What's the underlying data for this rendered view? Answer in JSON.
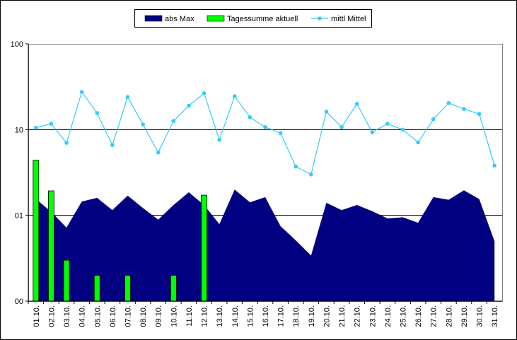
{
  "chart_data": {
    "type": "combo",
    "categories": [
      "01.10.",
      "02.10.",
      "03.10.",
      "04.10.",
      "05.10.",
      "06.10.",
      "07.10.",
      "08.10.",
      "09.10.",
      "10.10.",
      "11.10.",
      "12.10.",
      "13.10.",
      "14.10.",
      "15.10.",
      "16.10.",
      "17.10.",
      "18.10.",
      "19.10.",
      "20.10.",
      "21.10.",
      "22.10.",
      "23.10.",
      "24.10.",
      "25.10.",
      "26.10.",
      "27.10.",
      "28.10.",
      "29.10.",
      "30.10.",
      "31.10."
    ],
    "series": [
      {
        "name": "abs Max",
        "kind": "area",
        "color": "#000080",
        "values": [
          1.55,
          1.1,
          0.72,
          1.45,
          1.6,
          1.15,
          1.7,
          1.22,
          0.89,
          1.32,
          1.86,
          1.32,
          0.79,
          2.0,
          1.42,
          1.63,
          0.75,
          0.51,
          0.34,
          1.4,
          1.15,
          1.32,
          1.12,
          0.92,
          0.95,
          0.82,
          1.63,
          1.52,
          1.96,
          1.55,
          0.5
        ]
      },
      {
        "name": "Tagessumme aktuell",
        "kind": "bar",
        "color": "#00ff00",
        "values": [
          4.4,
          1.93,
          0.3,
          null,
          0.2,
          null,
          0.2,
          null,
          null,
          0.2,
          null,
          1.72,
          null,
          null,
          null,
          null,
          null,
          null,
          null,
          null,
          null,
          null,
          null,
          null,
          null,
          null,
          null,
          null,
          null,
          null,
          null
        ]
      },
      {
        "name": "mittl Mittel",
        "kind": "line",
        "color": "#33ccff",
        "values": [
          10.5,
          11.7,
          7.0,
          27.5,
          15.6,
          6.6,
          24,
          11.5,
          5.4,
          12.6,
          19,
          26.5,
          7.6,
          24.5,
          13.9,
          10.7,
          9.1,
          3.7,
          3.0,
          16.2,
          10.7,
          20,
          9.3,
          11.7,
          10,
          7.1,
          13.2,
          20.4,
          17.4,
          15.2,
          3.8
        ]
      }
    ],
    "ylim": [
      0.1,
      100
    ],
    "log_scale": true,
    "grid": true,
    "legend": "top",
    "yticks": [
      {
        "value": 0.1,
        "label": "00"
      },
      {
        "value": 1,
        "label": "01"
      },
      10,
      100
    ]
  }
}
